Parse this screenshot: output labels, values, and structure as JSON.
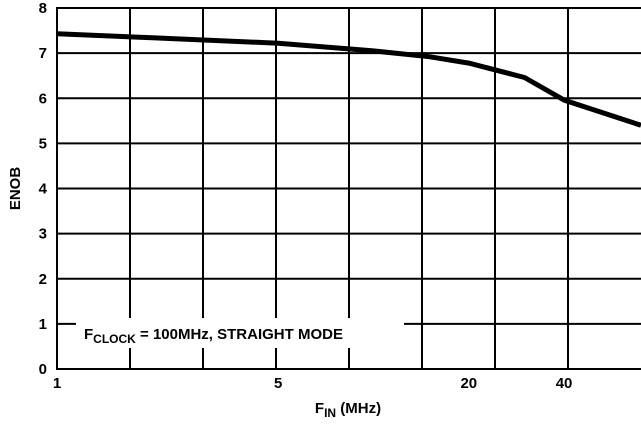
{
  "chart_data": {
    "type": "line",
    "title": "",
    "xlabel": {
      "main": "F",
      "sub": "IN",
      "rest": " (MHz)"
    },
    "ylabel": "ENOB",
    "x_scale": "log",
    "x_ticks": [
      {
        "value": 1,
        "label": "1"
      },
      {
        "value": 5,
        "label": "5"
      },
      {
        "value": 20,
        "label": "20"
      },
      {
        "value": 40,
        "label": "40"
      }
    ],
    "xlim": [
      1,
      70
    ],
    "ylim": [
      0,
      8
    ],
    "y_ticks": [
      0,
      1,
      2,
      3,
      4,
      5,
      6,
      7,
      8
    ],
    "y_tick_labels": [
      "0",
      "1",
      "2",
      "3",
      "4",
      "5",
      "6",
      "7",
      "8"
    ],
    "grid": true,
    "series": [
      {
        "values": [
          {
            "x": 1,
            "y": 7.43
          },
          {
            "x": 2,
            "y": 7.34
          },
          {
            "x": 5,
            "y": 7.22
          },
          {
            "x": 10,
            "y": 7.05
          },
          {
            "x": 15,
            "y": 6.92
          },
          {
            "x": 20,
            "y": 6.78
          },
          {
            "x": 30,
            "y": 6.46
          },
          {
            "x": 40,
            "y": 5.96
          },
          {
            "x": 70,
            "y": 5.4
          }
        ],
        "color": "#000000"
      }
    ],
    "annotation": {
      "main": "F",
      "sub": "CLOCK",
      "rest": " = 100MHz, STRAIGHT MODE"
    }
  }
}
